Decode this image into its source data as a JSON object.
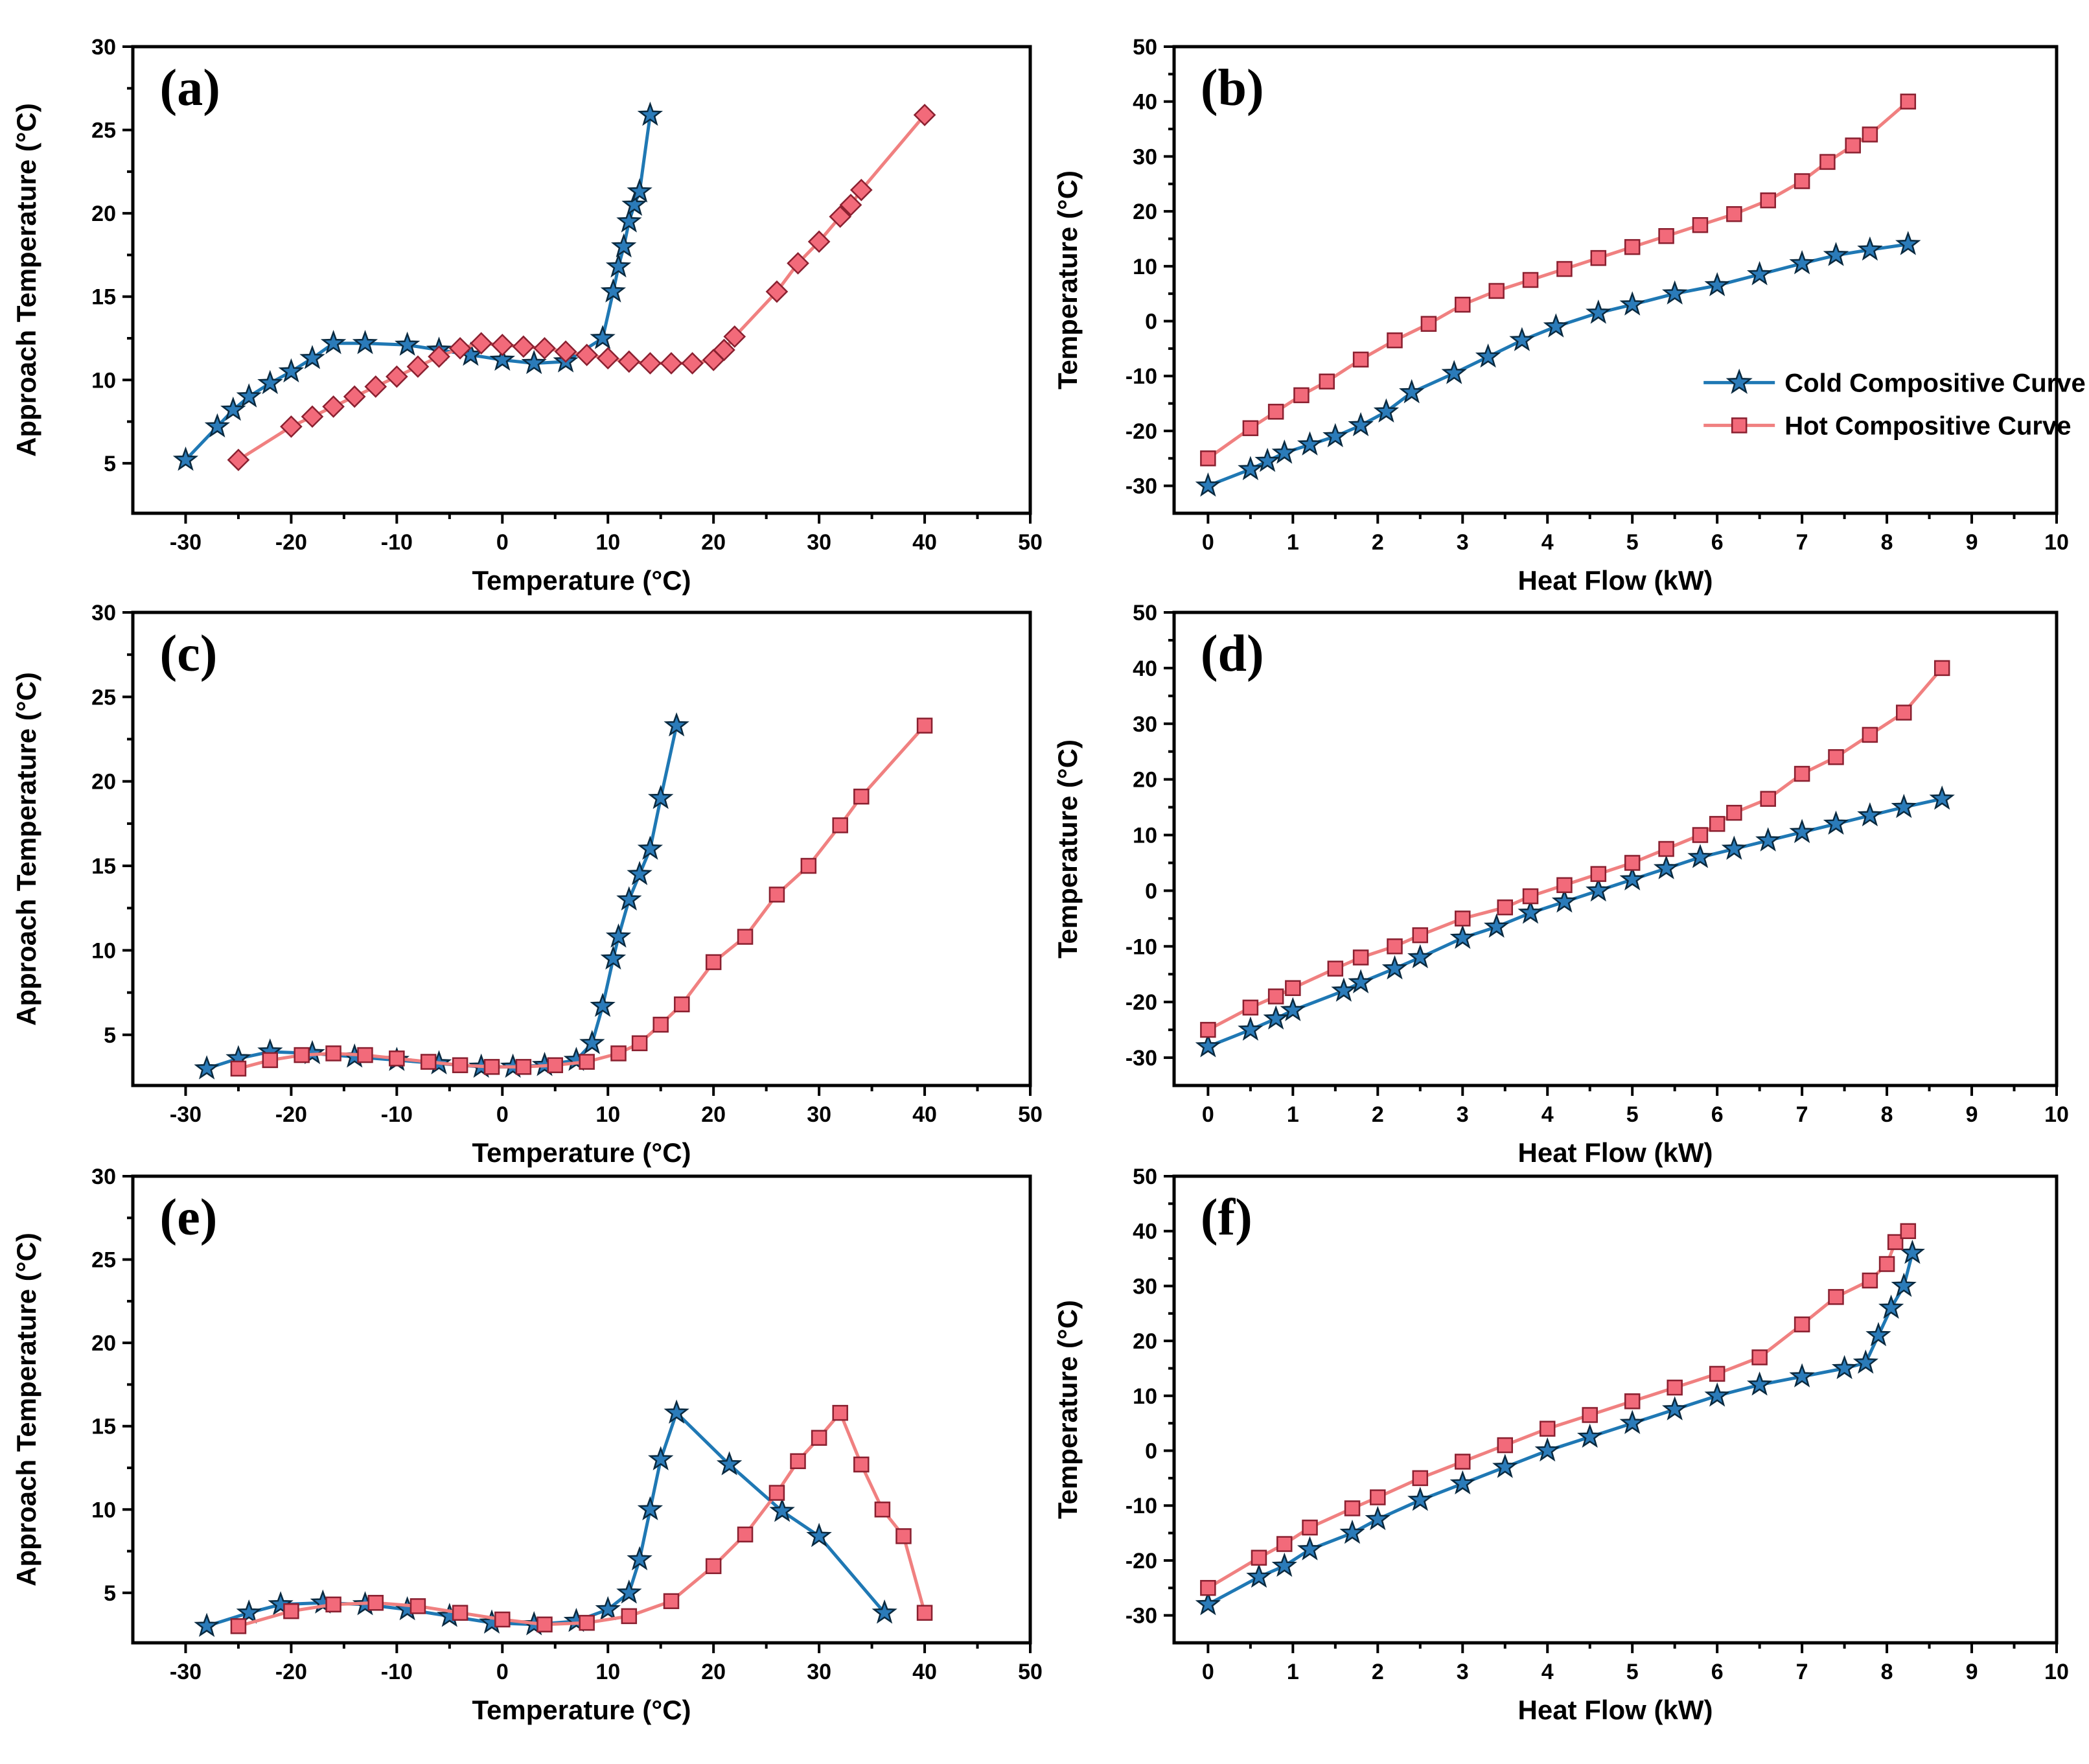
{
  "colors": {
    "cold": "#1f78b4",
    "hot": "#f08080",
    "cold_marker": "#2b7bb9",
    "hot_marker": "#f26a7a"
  },
  "legend": {
    "cold_label": "Cold Compositive Curve",
    "hot_label": "Hot Compositive Curve"
  },
  "chart_data": [
    {
      "panel": "(a)",
      "type": "line",
      "xlabel": "Temperature (°C)",
      "ylabel": "Approach Temperature (°C)",
      "xlim": [
        -35,
        50
      ],
      "ylim": [
        2,
        30
      ],
      "xticks": [
        -30,
        -20,
        -10,
        0,
        10,
        20,
        30,
        40,
        50
      ],
      "yticks": [
        5,
        10,
        15,
        20,
        25,
        30
      ],
      "series": [
        {
          "name": "cold",
          "marker": "star",
          "x": [
            -30,
            -27,
            -25.5,
            -24,
            -22,
            -20,
            -18,
            -16,
            -13,
            -9,
            -6,
            -3,
            0,
            3,
            6,
            9.5,
            10.5,
            11,
            11.5,
            12,
            12.5,
            13,
            14
          ],
          "y": [
            5.2,
            7.2,
            8.2,
            9,
            9.8,
            10.5,
            11.3,
            12.2,
            12.2,
            12.1,
            11.8,
            11.5,
            11.2,
            11,
            11.1,
            12.5,
            15.3,
            16.8,
            18,
            19.5,
            20.5,
            21.3,
            25.9
          ]
        },
        {
          "name": "hot",
          "marker": "diamond",
          "x": [
            -25,
            -20,
            -18,
            -16,
            -14,
            -12,
            -10,
            -8,
            -6,
            -4,
            -2,
            0,
            2,
            4,
            6,
            8,
            10,
            12,
            14,
            16,
            18,
            20,
            21,
            22,
            26,
            28,
            30,
            32,
            33,
            34,
            40
          ],
          "y": [
            5.2,
            7.2,
            7.8,
            8.4,
            9,
            9.6,
            10.2,
            10.8,
            11.4,
            11.9,
            12.2,
            12.1,
            12,
            11.9,
            11.7,
            11.5,
            11.3,
            11.1,
            11,
            11,
            11,
            11.2,
            11.8,
            12.6,
            15.3,
            17,
            18.3,
            19.8,
            20.5,
            21.4,
            25.9
          ]
        }
      ]
    },
    {
      "panel": "(b)",
      "type": "line",
      "xlabel": "Heat Flow (kW)",
      "ylabel": "Temperature (°C)",
      "xlim": [
        -0.4,
        10
      ],
      "ylim": [
        -35,
        50
      ],
      "xticks": [
        0,
        1,
        2,
        3,
        4,
        5,
        6,
        7,
        8,
        9,
        10
      ],
      "yticks": [
        -30,
        -20,
        -10,
        0,
        10,
        20,
        30,
        40,
        50
      ],
      "legend": true,
      "series": [
        {
          "name": "cold",
          "marker": "star",
          "x": [
            0,
            0.5,
            0.7,
            0.9,
            1.2,
            1.5,
            1.8,
            2.1,
            2.4,
            2.9,
            3.3,
            3.7,
            4.1,
            4.6,
            5,
            5.5,
            6,
            6.5,
            7,
            7.4,
            7.8,
            8.25
          ],
          "y": [
            -30,
            -27,
            -25.5,
            -24,
            -22.5,
            -21,
            -19,
            -16.5,
            -13,
            -9.5,
            -6.5,
            -3.5,
            -1,
            1.5,
            3,
            5,
            6.5,
            8.5,
            10.5,
            12,
            13,
            14
          ]
        },
        {
          "name": "hot",
          "marker": "square",
          "x": [
            0,
            0.5,
            0.8,
            1.1,
            1.4,
            1.8,
            2.2,
            2.6,
            3,
            3.4,
            3.8,
            4.2,
            4.6,
            5,
            5.4,
            5.8,
            6.2,
            6.6,
            7,
            7.3,
            7.6,
            7.8,
            8.25
          ],
          "y": [
            -25,
            -19.5,
            -16.5,
            -13.5,
            -11,
            -7,
            -3.5,
            -0.5,
            3,
            5.5,
            7.5,
            9.5,
            11.5,
            13.5,
            15.5,
            17.5,
            19.5,
            22,
            25.5,
            29,
            32,
            34,
            40
          ]
        }
      ]
    },
    {
      "panel": "(c)",
      "type": "line",
      "xlabel": "Temperature (°C)",
      "ylabel": "Approach Temperature (°C)",
      "xlim": [
        -35,
        50
      ],
      "ylim": [
        2,
        30
      ],
      "xticks": [
        -30,
        -20,
        -10,
        0,
        10,
        20,
        30,
        40,
        50
      ],
      "yticks": [
        5,
        10,
        15,
        20,
        25,
        30
      ],
      "series": [
        {
          "name": "cold",
          "marker": "star",
          "x": [
            -28,
            -25,
            -22,
            -18,
            -14,
            -10,
            -6,
            -2,
            1,
            4,
            7,
            8.5,
            9.5,
            10.5,
            11,
            12,
            13,
            14,
            15,
            16.5
          ],
          "y": [
            3,
            3.6,
            4,
            3.9,
            3.7,
            3.5,
            3.3,
            3.1,
            3.1,
            3.2,
            3.5,
            4.5,
            6.7,
            9.5,
            10.8,
            13,
            14.5,
            16,
            19,
            23.3
          ]
        },
        {
          "name": "hot",
          "marker": "square",
          "x": [
            -25,
            -22,
            -19,
            -16,
            -13,
            -10,
            -7,
            -4,
            -1,
            2,
            5,
            8,
            11,
            13,
            15,
            17,
            20,
            23,
            26,
            29,
            32,
            34,
            40
          ],
          "y": [
            3,
            3.5,
            3.8,
            3.9,
            3.8,
            3.6,
            3.4,
            3.2,
            3.1,
            3.1,
            3.2,
            3.4,
            3.9,
            4.5,
            5.6,
            6.8,
            9.3,
            10.8,
            13.3,
            15,
            17.4,
            19.1,
            23.3
          ]
        }
      ]
    },
    {
      "panel": "(d)",
      "type": "line",
      "xlabel": "Heat Flow (kW)",
      "ylabel": "Temperature (°C)",
      "xlim": [
        -0.4,
        10
      ],
      "ylim": [
        -35,
        50
      ],
      "xticks": [
        0,
        1,
        2,
        3,
        4,
        5,
        6,
        7,
        8,
        9,
        10
      ],
      "yticks": [
        -30,
        -20,
        -10,
        0,
        10,
        20,
        30,
        40,
        50
      ],
      "series": [
        {
          "name": "cold",
          "marker": "star",
          "x": [
            0,
            0.5,
            0.8,
            1,
            1.6,
            1.8,
            2.2,
            2.5,
            3,
            3.4,
            3.8,
            4.2,
            4.6,
            5,
            5.4,
            5.8,
            6.2,
            6.6,
            7,
            7.4,
            7.8,
            8.2,
            8.65
          ],
          "y": [
            -28,
            -25,
            -23,
            -21.5,
            -18,
            -16.5,
            -14,
            -12,
            -8.5,
            -6.5,
            -4,
            -2,
            0,
            2,
            4,
            6,
            7.5,
            9,
            10.5,
            12,
            13.5,
            15,
            16.5
          ]
        },
        {
          "name": "hot",
          "marker": "square",
          "x": [
            0,
            0.5,
            0.8,
            1,
            1.5,
            1.8,
            2.2,
            2.5,
            3,
            3.5,
            3.8,
            4.2,
            4.6,
            5,
            5.4,
            5.8,
            6,
            6.2,
            6.6,
            7,
            7.4,
            7.8,
            8.2,
            8.65
          ],
          "y": [
            -25,
            -21,
            -19,
            -17.5,
            -14,
            -12,
            -10,
            -8,
            -5,
            -3,
            -1,
            1,
            3,
            5,
            7.5,
            10,
            12,
            14,
            16.5,
            21,
            24,
            28,
            32,
            40
          ]
        }
      ]
    },
    {
      "panel": "(e)",
      "type": "line",
      "xlabel": "Temperature (°C)",
      "ylabel": "Approach Temperature (°C)",
      "xlim": [
        -35,
        50
      ],
      "ylim": [
        2,
        30
      ],
      "xticks": [
        -30,
        -20,
        -10,
        0,
        10,
        20,
        30,
        40,
        50
      ],
      "yticks": [
        5,
        10,
        15,
        20,
        25,
        30
      ],
      "series": [
        {
          "name": "cold",
          "marker": "star",
          "x": [
            -28,
            -24,
            -21,
            -17,
            -13,
            -9,
            -5,
            -1,
            3,
            7,
            10,
            12,
            13,
            14,
            15,
            16.5,
            21.5,
            26.5,
            30,
            36.2
          ],
          "y": [
            3,
            3.8,
            4.3,
            4.4,
            4.3,
            4,
            3.6,
            3.2,
            3.1,
            3.3,
            4,
            5,
            7,
            10,
            13,
            15.8,
            12.7,
            9.9,
            8.4,
            3.8
          ]
        },
        {
          "name": "hot",
          "marker": "square",
          "x": [
            -25,
            -20,
            -16,
            -12,
            -8,
            -4,
            0,
            4,
            8,
            12,
            16,
            20,
            23,
            26,
            28,
            30,
            32,
            34,
            36,
            38,
            40
          ],
          "y": [
            3,
            3.9,
            4.3,
            4.4,
            4.2,
            3.8,
            3.4,
            3.1,
            3.2,
            3.6,
            4.5,
            6.6,
            8.5,
            11,
            12.9,
            14.3,
            15.8,
            12.7,
            10,
            8.4,
            3.8
          ]
        }
      ]
    },
    {
      "panel": "(f)",
      "type": "line",
      "xlabel": "Heat Flow (kW)",
      "ylabel": "Temperature (°C)",
      "xlim": [
        -0.4,
        10
      ],
      "ylim": [
        -35,
        50
      ],
      "xticks": [
        0,
        1,
        2,
        3,
        4,
        5,
        6,
        7,
        8,
        9,
        10
      ],
      "yticks": [
        -30,
        -20,
        -10,
        0,
        10,
        20,
        30,
        40,
        50
      ],
      "series": [
        {
          "name": "cold",
          "marker": "star",
          "x": [
            0,
            0.6,
            0.9,
            1.2,
            1.7,
            2,
            2.5,
            3,
            3.5,
            4,
            4.5,
            5,
            5.5,
            6,
            6.5,
            7,
            7.5,
            7.75,
            7.9,
            8.05,
            8.2,
            8.3
          ],
          "y": [
            -28,
            -23,
            -21,
            -18,
            -15,
            -12.5,
            -9,
            -6,
            -3,
            0,
            2.5,
            5,
            7.5,
            10,
            12,
            13.5,
            15,
            16,
            21,
            26,
            30,
            36
          ]
        },
        {
          "name": "hot",
          "marker": "square",
          "x": [
            0,
            0.6,
            0.9,
            1.2,
            1.7,
            2,
            2.5,
            3,
            3.5,
            4,
            4.5,
            5,
            5.5,
            6,
            6.5,
            7,
            7.4,
            7.8,
            8,
            8.1,
            8.25
          ],
          "y": [
            -25,
            -19.5,
            -17,
            -14,
            -10.5,
            -8.5,
            -5,
            -2,
            1,
            4,
            6.5,
            9,
            11.5,
            14,
            17,
            23,
            28,
            31,
            34,
            38,
            40
          ]
        }
      ]
    }
  ]
}
